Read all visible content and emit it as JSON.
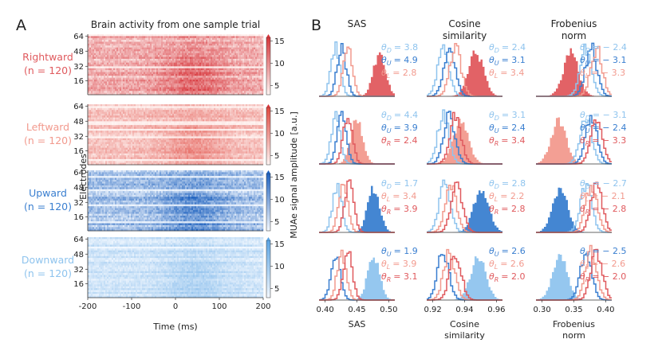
{
  "panel_a": {
    "letter": "A",
    "title": "Brain activity from one sample trial",
    "rows": [
      {
        "label": "Rightward",
        "n": "(n = 120)",
        "color": "#e05a5e",
        "scale": "red"
      },
      {
        "label": "Leftward",
        "n": "(n = 120)",
        "color": "#f29a8e",
        "scale": "pink"
      },
      {
        "label": "Upward",
        "n": "(n = 120)",
        "color": "#3a7fd0",
        "scale": "blue"
      },
      {
        "label": "Downward",
        "n": "(n = 120)",
        "color": "#8fc4ee",
        "scale": "lightblue"
      }
    ],
    "y_ticks": [
      "64",
      "48",
      "32",
      "16"
    ],
    "x_ticks": [
      "-200",
      "-100",
      "0",
      "100",
      "200"
    ],
    "xlabel": "Time (ms)",
    "ylabel": "Electrodes",
    "colorbar_ticks": [
      "15",
      "10",
      "5"
    ],
    "colorbar_label": "MUAe signal amplitude [a.u.]"
  },
  "panel_b": {
    "letter": "B",
    "columns": [
      {
        "title1": "SAS",
        "title2": "",
        "xlabel1": "SAS",
        "xlabel2": "",
        "ticks": [
          "0.40",
          "0.45",
          "0.50"
        ]
      },
      {
        "title1": "Cosine",
        "title2": "similarity",
        "xlabel1": "Cosine",
        "xlabel2": "similarity",
        "ticks": [
          "0.92",
          "0.94",
          "0.96"
        ]
      },
      {
        "title1": "Frobenius",
        "title2": "norm",
        "xlabel1": "Frobenius",
        "xlabel2": "norm",
        "ticks": [
          "0.30",
          "0.35",
          "0.40"
        ]
      }
    ]
  },
  "chart_data": [
    {
      "type": "histogram",
      "metric": "SAS",
      "trial": "Rightward",
      "theta": [
        {
          "sym": "θ",
          "sub": "D",
          "val": "= 3.8",
          "color": "#8fc4ee"
        },
        {
          "sym": "θ",
          "sub": "U",
          "val": "= 4.9",
          "color": "#3a7fd0"
        },
        {
          "sym": "θ",
          "sub": "L",
          "val": "= 2.8",
          "color": "#f29a8e"
        }
      ]
    },
    {
      "type": "histogram",
      "metric": "Cosine similarity",
      "trial": "Rightward",
      "theta": [
        {
          "sym": "θ",
          "sub": "D",
          "val": "= 2.4",
          "color": "#8fc4ee"
        },
        {
          "sym": "θ",
          "sub": "U",
          "val": "= 3.1",
          "color": "#3a7fd0"
        },
        {
          "sym": "θ",
          "sub": "L",
          "val": "= 3.4",
          "color": "#f29a8e"
        }
      ]
    },
    {
      "type": "histogram",
      "metric": "Frobenius norm",
      "trial": "Rightward",
      "theta": [
        {
          "sym": "θ",
          "sub": "D",
          "val": "= − 2.4",
          "color": "#8fc4ee"
        },
        {
          "sym": "θ",
          "sub": "U",
          "val": "= − 3.1",
          "color": "#3a7fd0"
        },
        {
          "sym": "θ",
          "sub": "L",
          "val": "= − 3.3",
          "color": "#f29a8e"
        }
      ]
    },
    {
      "type": "histogram",
      "metric": "SAS",
      "trial": "Leftward",
      "theta": [
        {
          "sym": "θ",
          "sub": "D",
          "val": "= 4.4",
          "color": "#8fc4ee"
        },
        {
          "sym": "θ",
          "sub": "U",
          "val": "= 3.9",
          "color": "#3a7fd0"
        },
        {
          "sym": "θ",
          "sub": "R",
          "val": "= 2.4",
          "color": "#e05a5e"
        }
      ]
    },
    {
      "type": "histogram",
      "metric": "Cosine similarity",
      "trial": "Leftward",
      "theta": [
        {
          "sym": "θ",
          "sub": "D",
          "val": "= 3.1",
          "color": "#8fc4ee"
        },
        {
          "sym": "θ",
          "sub": "U",
          "val": "= 2.4",
          "color": "#3a7fd0"
        },
        {
          "sym": "θ",
          "sub": "R",
          "val": "= 3.4",
          "color": "#e05a5e"
        }
      ]
    },
    {
      "type": "histogram",
      "metric": "Frobenius norm",
      "trial": "Leftward",
      "theta": [
        {
          "sym": "θ",
          "sub": "D",
          "val": "= − 3.1",
          "color": "#8fc4ee"
        },
        {
          "sym": "θ",
          "sub": "U",
          "val": "= − 2.4",
          "color": "#3a7fd0"
        },
        {
          "sym": "θ",
          "sub": "R",
          "val": "= − 3.3",
          "color": "#e05a5e"
        }
      ]
    },
    {
      "type": "histogram",
      "metric": "SAS",
      "trial": "Upward",
      "theta": [
        {
          "sym": "θ",
          "sub": "D",
          "val": "= 1.7",
          "color": "#8fc4ee"
        },
        {
          "sym": "θ",
          "sub": "L",
          "val": "= 3.4",
          "color": "#f29a8e"
        },
        {
          "sym": "θ",
          "sub": "R",
          "val": "= 3.9",
          "color": "#e05a5e"
        }
      ]
    },
    {
      "type": "histogram",
      "metric": "Cosine similarity",
      "trial": "Upward",
      "theta": [
        {
          "sym": "θ",
          "sub": "D",
          "val": "= 2.8",
          "color": "#8fc4ee"
        },
        {
          "sym": "θ",
          "sub": "L",
          "val": "= 2.2",
          "color": "#f29a8e"
        },
        {
          "sym": "θ",
          "sub": "R",
          "val": "= 2.8",
          "color": "#e05a5e"
        }
      ]
    },
    {
      "type": "histogram",
      "metric": "Frobenius norm",
      "trial": "Upward",
      "theta": [
        {
          "sym": "θ",
          "sub": "D",
          "val": "= − 2.7",
          "color": "#8fc4ee"
        },
        {
          "sym": "θ",
          "sub": "L",
          "val": "= − 2.1",
          "color": "#f29a8e"
        },
        {
          "sym": "θ",
          "sub": "R",
          "val": "= − 2.8",
          "color": "#e05a5e"
        }
      ]
    },
    {
      "type": "histogram",
      "metric": "SAS",
      "trial": "Downward",
      "theta": [
        {
          "sym": "θ",
          "sub": "U",
          "val": "= 1.9",
          "color": "#3a7fd0"
        },
        {
          "sym": "θ",
          "sub": "L",
          "val": "= 3.9",
          "color": "#f29a8e"
        },
        {
          "sym": "θ",
          "sub": "R",
          "val": "= 3.1",
          "color": "#e05a5e"
        }
      ]
    },
    {
      "type": "histogram",
      "metric": "Cosine similarity",
      "trial": "Downward",
      "theta": [
        {
          "sym": "θ",
          "sub": "U",
          "val": "= 2.6",
          "color": "#3a7fd0"
        },
        {
          "sym": "θ",
          "sub": "L",
          "val": "= 2.6",
          "color": "#f29a8e"
        },
        {
          "sym": "θ",
          "sub": "R",
          "val": "= 2.0",
          "color": "#e05a5e"
        }
      ]
    },
    {
      "type": "histogram",
      "metric": "Frobenius norm",
      "trial": "Downward",
      "theta": [
        {
          "sym": "θ",
          "sub": "U",
          "val": "= − 2.5",
          "color": "#3a7fd0"
        },
        {
          "sym": "θ",
          "sub": "L",
          "val": "= − 2.6",
          "color": "#f29a8e"
        },
        {
          "sym": "θ",
          "sub": "R",
          "val": "= − 2.0",
          "color": "#e05a5e"
        }
      ]
    }
  ]
}
